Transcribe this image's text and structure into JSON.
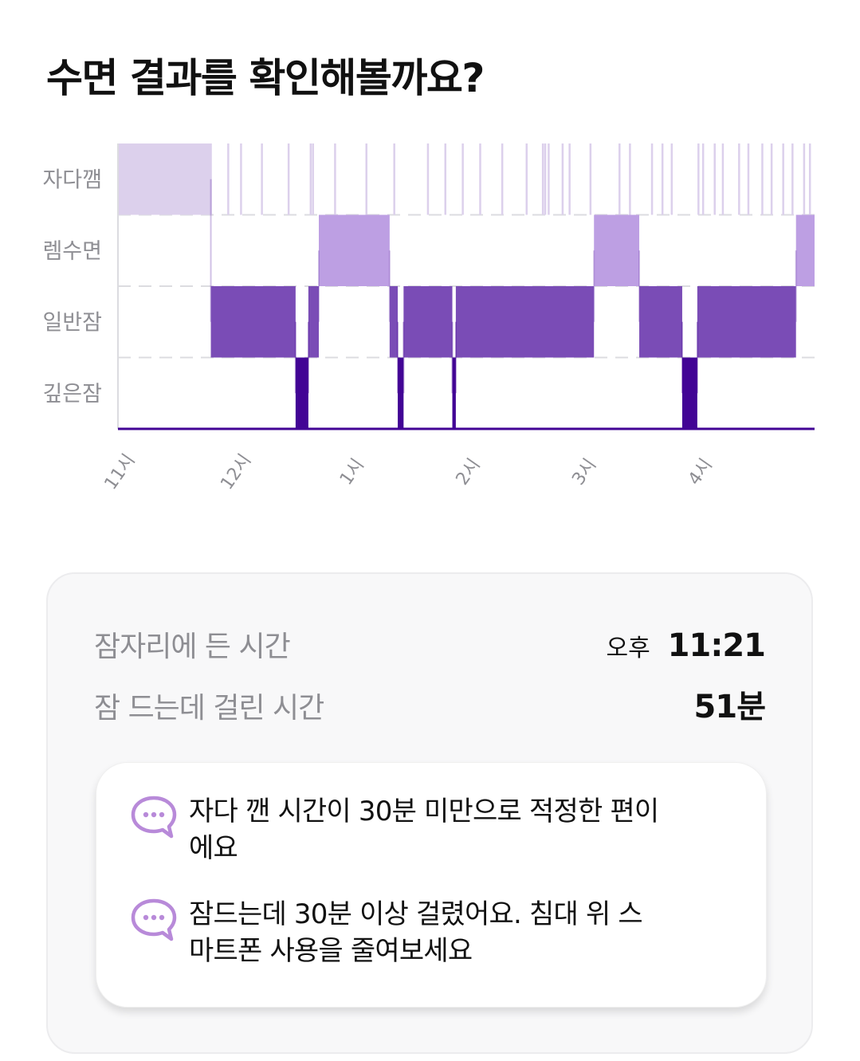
{
  "header": {
    "title": "수면 결과를 확인해볼까요?"
  },
  "chart_data": {
    "type": "hypnogram",
    "stages": [
      "자다깸",
      "렘수면",
      "일반잠",
      "깊은잠"
    ],
    "x_ticks": [
      "11시",
      "12시",
      "1시",
      "2시",
      "3시",
      "4시"
    ],
    "x_tick_hours": [
      23,
      24,
      25,
      26,
      27,
      28
    ],
    "x_range_hours": [
      23,
      29
    ],
    "stage_colors": [
      "#dcd0ec",
      "#bd9fe3",
      "#7a4cb6",
      "#420495"
    ],
    "segments": [
      {
        "stage": "자다깸",
        "start": 23.0,
        "end": 23.8
      },
      {
        "stage": "일반잠",
        "start": 23.8,
        "end": 24.53
      },
      {
        "stage": "깊은잠",
        "start": 24.53,
        "end": 24.64
      },
      {
        "stage": "일반잠",
        "start": 24.64,
        "end": 24.73
      },
      {
        "stage": "렘수면",
        "start": 24.73,
        "end": 25.34
      },
      {
        "stage": "일반잠",
        "start": 25.34,
        "end": 25.41
      },
      {
        "stage": "깊은잠",
        "start": 25.41,
        "end": 25.46
      },
      {
        "stage": "일반잠",
        "start": 25.46,
        "end": 25.88
      },
      {
        "stage": "깊은잠",
        "start": 25.88,
        "end": 25.91
      },
      {
        "stage": "일반잠",
        "start": 25.91,
        "end": 27.1
      },
      {
        "stage": "렘수면",
        "start": 27.1,
        "end": 27.49
      },
      {
        "stage": "일반잠",
        "start": 27.49,
        "end": 27.86
      },
      {
        "stage": "깊은잠",
        "start": 27.86,
        "end": 27.99
      },
      {
        "stage": "일반잠",
        "start": 27.99,
        "end": 28.84
      },
      {
        "stage": "렘수면",
        "start": 28.84,
        "end": 29.0
      }
    ],
    "awake_marks": [
      23.8,
      23.95,
      24.06,
      24.24,
      24.47,
      24.66,
      24.68,
      24.87,
      25.14,
      25.38,
      25.67,
      25.82,
      25.97,
      26.12,
      26.31,
      26.52,
      26.66,
      26.68,
      26.71,
      26.83,
      26.89,
      27.07,
      27.32,
      27.41,
      27.6,
      27.69,
      27.77,
      28.0,
      28.04,
      28.14,
      28.21,
      28.35,
      28.43,
      28.55,
      28.63,
      28.73,
      28.81,
      28.91,
      28.96
    ]
  },
  "summary": {
    "bedtime_label": "잠자리에 든 시간",
    "bedtime_ampm": "오후",
    "bedtime_value": "11:21",
    "latency_label": "잠 드는데 걸린 시간",
    "latency_value": "51분"
  },
  "tips": [
    {
      "icon": "speech-bubble-icon",
      "text": "자다 깬 시간이 30분 미만으로 적정한 편이에요"
    },
    {
      "icon": "speech-bubble-icon",
      "text": "잠드는데 30분 이상 걸렸어요. 침대 위 스마트폰 사용을 줄여보세요"
    }
  ],
  "colors": {
    "accent": "#7a4cb6",
    "icon": "#b88ad9",
    "muted": "#8e8e93"
  }
}
